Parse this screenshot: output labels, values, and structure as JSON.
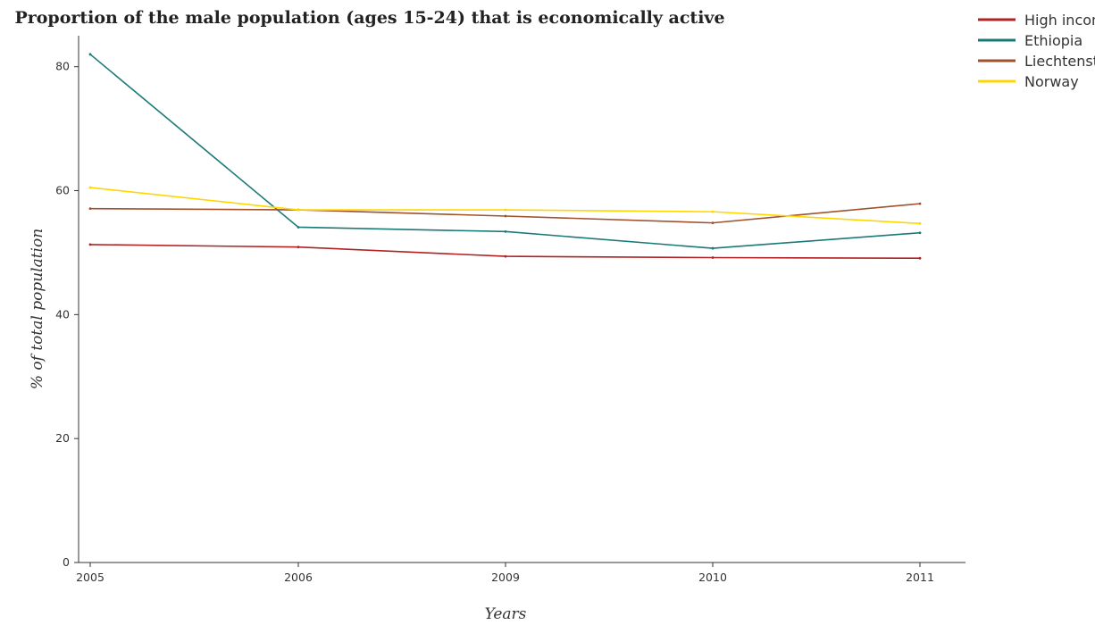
{
  "chart_data": {
    "type": "line",
    "title": "Proportion of the male population (ages 15-24) that is economically active",
    "xlabel": "Years",
    "ylabel": "% of total population",
    "categories": [
      "2005",
      "2006",
      "2009",
      "2010",
      "2011"
    ],
    "ylim": [
      0,
      85
    ],
    "yticks": [
      0,
      20,
      40,
      60,
      80
    ],
    "grid": false,
    "legend_position": "top-right",
    "series": [
      {
        "name": "High income",
        "color": "#b22222",
        "values": [
          51.3,
          50.9,
          49.4,
          49.2,
          49.1
        ]
      },
      {
        "name": "Ethiopia",
        "color": "#1a7a78",
        "values": [
          82.0,
          54.1,
          53.4,
          50.7,
          53.2
        ]
      },
      {
        "name": "Liechtenstein",
        "color": "#a0522d",
        "values": [
          57.1,
          56.9,
          55.9,
          54.8,
          57.9
        ]
      },
      {
        "name": "Norway",
        "color": "#ffd700",
        "values": [
          60.5,
          56.9,
          56.9,
          56.6,
          54.7
        ]
      }
    ]
  }
}
